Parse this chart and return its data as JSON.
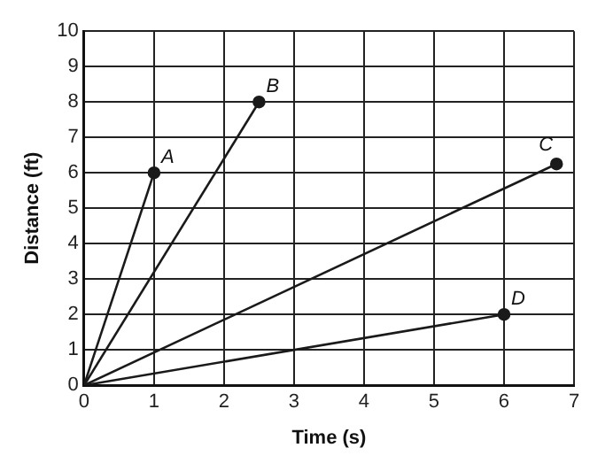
{
  "chart_data": {
    "type": "line",
    "xlabel": "Time (s)",
    "ylabel": "Distance (ft)",
    "xlim": [
      0,
      7
    ],
    "xticks": [
      0,
      1,
      2,
      3,
      4,
      5,
      6,
      7
    ],
    "ylim": [
      0,
      10
    ],
    "yticks": [
      0,
      1,
      2,
      3,
      4,
      5,
      6,
      7,
      8,
      9,
      10
    ],
    "grid": true,
    "legend": false,
    "marker": "circle",
    "line_style": "solid",
    "series": [
      {
        "name": "A",
        "color": "#1a1a1a",
        "x": [
          0,
          1
        ],
        "values": [
          0,
          6
        ]
      },
      {
        "name": "B",
        "color": "#1a1a1a",
        "x": [
          0,
          2.5
        ],
        "values": [
          0,
          8
        ]
      },
      {
        "name": "C",
        "color": "#1a1a1a",
        "x": [
          0,
          6.75
        ],
        "values": [
          0,
          6.25
        ]
      },
      {
        "name": "D",
        "color": "#1a1a1a",
        "x": [
          0,
          6
        ],
        "values": [
          0,
          2
        ]
      }
    ]
  }
}
